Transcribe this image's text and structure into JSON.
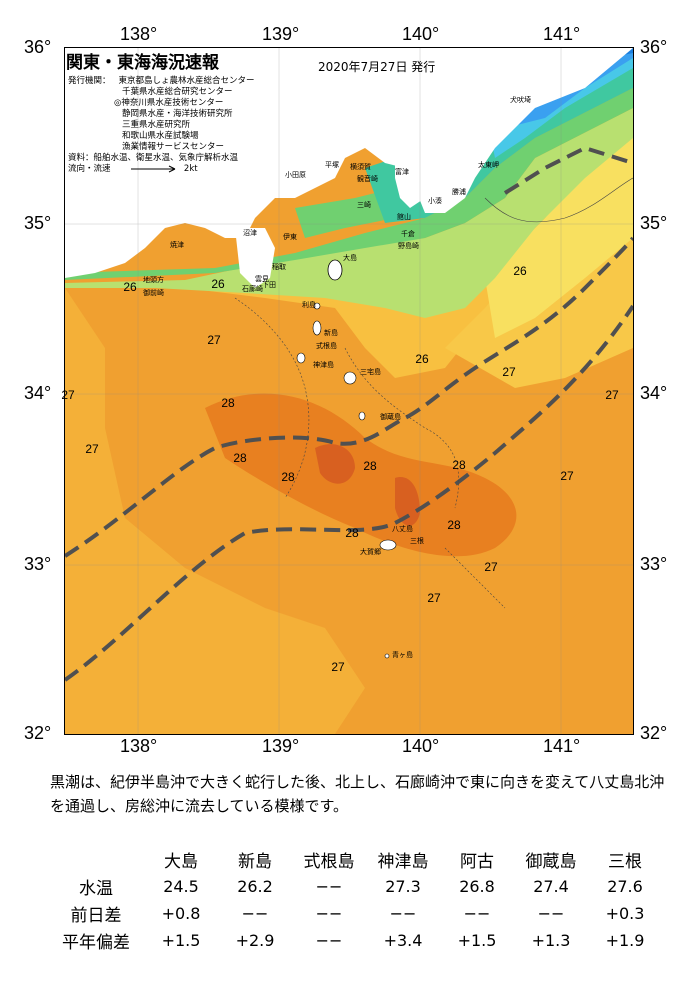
{
  "header": {
    "title": "関東・東海海況速報",
    "issue_date": "2020年7月27日 発行",
    "org_label": "発行機関：",
    "orgs": [
      "東京都島しょ農林水産総合センター",
      "千葉県水産総合研究センター",
      "◎神奈川県水産技術センター",
      "静岡県水産・海洋技術研究所",
      "三重県水産研究所",
      "和歌山県水産試験場",
      "漁業情報サービスセンター"
    ],
    "source": "資料：船舶水温、衛星水温、気象庁解析水温",
    "legend_label": "流向・流速",
    "legend_value": "2kt"
  },
  "axes": {
    "x_ticks": [
      "138°",
      "139°",
      "140°",
      "141°"
    ],
    "y_ticks_left": [
      "36°",
      "35°",
      "34°",
      "33°",
      "32°"
    ],
    "y_ticks_right": [
      "36°",
      "35°",
      "34°",
      "33°",
      "32°"
    ]
  },
  "temperature_labels": [
    "26",
    "26",
    "27",
    "26",
    "27",
    "28",
    "27",
    "28",
    "28",
    "28",
    "28",
    "27",
    "28",
    "28",
    "27",
    "27",
    "27",
    "26",
    "27",
    "27"
  ],
  "place_names": [
    "小田原",
    "平塚",
    "横須賀",
    "観音崎",
    "富津",
    "三崎",
    "館山",
    "千倉",
    "野島崎",
    "大島",
    "沼津",
    "伊東",
    "稲取",
    "下田",
    "石廊崎",
    "雲見",
    "焼津",
    "御前崎",
    "地頭方",
    "利島",
    "新島",
    "式根島",
    "神津島",
    "三宅島",
    "御蔵島",
    "八丈島",
    "三根",
    "大賀郷",
    "青ヶ島",
    "勝浦",
    "小湊",
    "太東岬",
    "犬吠埼"
  ],
  "colors": {
    "deep_blue": "#1a7fe0",
    "blue": "#3aa0f0",
    "cyan": "#48c8e8",
    "teal": "#40c8a0",
    "green": "#70d070",
    "lightgreen": "#b8e070",
    "yellow": "#f8e060",
    "lightorange": "#f8c040",
    "orange": "#f0a030",
    "darkorange": "#e88020",
    "redorange": "#d86020",
    "kuroshio_line": "#505050"
  },
  "description": "黒潮は、紀伊半島沖で大きく蛇行した後、北上し、石廊崎沖で東に向きを変えて八丈島北沖を通過し、房総沖に流去している模様です。",
  "table": {
    "columns": [
      "大島",
      "新島",
      "式根島",
      "神津島",
      "阿古",
      "御蔵島",
      "三根"
    ],
    "rows": [
      {
        "label": "水温",
        "values": [
          "24.5",
          "26.2",
          "−−",
          "27.3",
          "26.8",
          "27.4",
          "27.6"
        ]
      },
      {
        "label": "前日差",
        "values": [
          "+0.8",
          "−−",
          "−−",
          "−−",
          "−−",
          "−−",
          "+0.3"
        ]
      },
      {
        "label": "平年偏差",
        "values": [
          "+1.5",
          "+2.9",
          "−−",
          "+3.4",
          "+1.5",
          "+1.3",
          "+1.9"
        ]
      }
    ]
  }
}
